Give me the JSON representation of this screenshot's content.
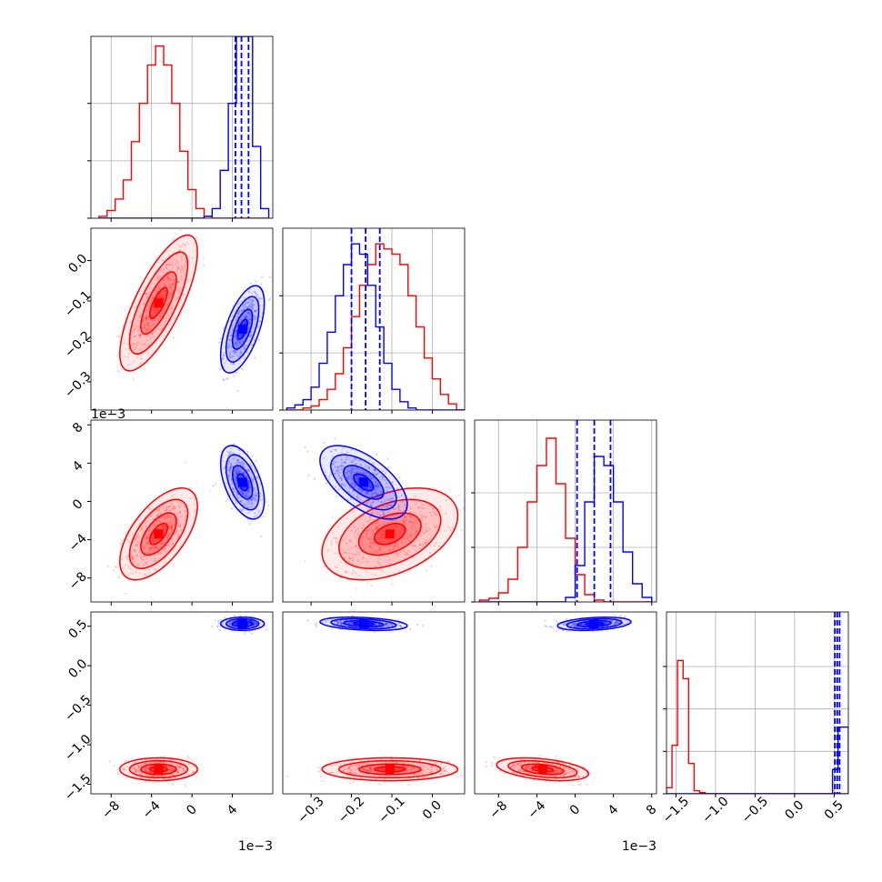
{
  "chart_data": {
    "type": "corner",
    "colors": {
      "series_a": "#ff0000",
      "series_b": "#0000ff"
    },
    "grid": true,
    "series": [
      {
        "color": "#ff0000",
        "hist_style": "step",
        "quantile_lines": false
      },
      {
        "color": "#0000ff",
        "hist_style": "step",
        "quantile_lines": true,
        "quantile_line_style": "dashed"
      }
    ],
    "parameters": [
      {
        "range": [
          -0.01,
          0.008
        ],
        "ticks": [
          -0.008,
          -0.004,
          0.0,
          0.004
        ],
        "tick_labels": [
          "−8",
          "−4",
          "0",
          "4"
        ],
        "offset_label": "1e−3"
      },
      {
        "range": [
          -0.37,
          0.08
        ],
        "ticks": [
          -0.3,
          -0.2,
          -0.1,
          0.0
        ],
        "tick_labels": [
          "−0.3",
          "−0.2",
          "−0.1",
          "0.0"
        ],
        "offset_label": ""
      },
      {
        "range": [
          -0.0105,
          0.0085
        ],
        "ticks": [
          -0.008,
          -0.004,
          0.0,
          0.004,
          0.008
        ],
        "tick_labels": [
          "−8",
          "−4",
          "0",
          "4",
          "8"
        ],
        "offset_label": "1e−3"
      },
      {
        "range": [
          -1.62,
          0.68
        ],
        "ticks": [
          -1.5,
          -1.0,
          -0.5,
          0.0,
          0.5
        ],
        "tick_labels": [
          "−1.5",
          "−1.0",
          "−0.5",
          "0.0",
          "0.5"
        ],
        "offset_label": ""
      }
    ],
    "marginals": [
      {
        "edges": [
          -0.0092,
          -0.0084,
          -0.0076,
          -0.0068,
          -0.006,
          -0.0052,
          -0.0044,
          -0.0036,
          -0.0028,
          -0.002,
          -0.0012,
          -0.0004,
          0.0004,
          0.0012,
          0.002,
          0.0028,
          0.0036,
          0.0044,
          0.0052,
          0.006,
          0.0068,
          0.0076
        ],
        "ymax": 190,
        "ticks": [
          0,
          60,
          120
        ],
        "red": [
          2,
          8,
          20,
          40,
          80,
          120,
          160,
          180,
          160,
          120,
          70,
          30,
          10,
          2,
          0,
          0,
          0,
          0,
          0,
          0,
          0
        ],
        "blue": [
          0,
          0,
          0,
          0,
          0,
          0,
          0,
          0,
          0,
          0,
          0,
          0,
          0,
          2,
          10,
          50,
          120,
          190,
          190,
          75,
          10
        ],
        "blue_quantiles": [
          0.0043,
          0.0049,
          0.0056
        ]
      },
      {
        "edges": [
          -0.36,
          -0.34,
          -0.32,
          -0.3,
          -0.28,
          -0.26,
          -0.24,
          -0.22,
          -0.2,
          -0.18,
          -0.16,
          -0.14,
          -0.12,
          -0.1,
          -0.08,
          -0.06,
          -0.04,
          -0.02,
          0.0,
          0.02,
          0.04,
          0.06,
          0.08
        ],
        "ymax": 175,
        "ticks": [
          0,
          55,
          110
        ],
        "red": [
          0,
          0,
          2,
          4,
          10,
          20,
          35,
          60,
          90,
          120,
          140,
          160,
          155,
          150,
          140,
          110,
          80,
          50,
          30,
          15,
          6,
          0
        ],
        "blue": [
          2,
          5,
          10,
          22,
          45,
          75,
          110,
          140,
          160,
          150,
          120,
          80,
          45,
          20,
          8,
          2,
          0,
          0,
          0,
          0,
          0,
          0
        ],
        "blue_quantiles": [
          -0.2,
          -0.165,
          -0.13
        ]
      },
      {
        "edges": [
          -0.01,
          -0.009,
          -0.008,
          -0.007,
          -0.006,
          -0.005,
          -0.004,
          -0.003,
          -0.002,
          -0.001,
          0.0,
          0.001,
          0.002,
          0.003,
          0.004,
          0.005,
          0.006,
          0.007,
          0.008
        ],
        "ymax": 200,
        "ticks": [
          0,
          60,
          120
        ],
        "red": [
          2,
          4,
          10,
          25,
          60,
          110,
          150,
          180,
          130,
          70,
          30,
          8,
          2,
          0,
          0,
          0,
          0,
          0
        ],
        "blue": [
          0,
          0,
          0,
          0,
          0,
          0,
          0,
          0,
          0,
          5,
          40,
          110,
          160,
          150,
          110,
          55,
          20,
          5
        ],
        "blue_quantiles": [
          0.0002,
          0.002,
          0.0037
        ]
      },
      {
        "edges": [
          -1.62,
          -1.55,
          -1.48,
          -1.41,
          -1.34,
          -1.27,
          -1.2,
          -1.13,
          -1.06,
          -0.99,
          -0.92,
          -0.85,
          -0.78,
          -0.71,
          -0.64,
          -0.57,
          -0.5,
          -0.43,
          -0.36,
          -0.29,
          -0.22,
          -0.15,
          -0.08,
          -0.01,
          0.06,
          0.13,
          0.2,
          0.27,
          0.34,
          0.41,
          0.48,
          0.55,
          0.62,
          0.68
        ],
        "ymax": 300,
        "ticks": [
          0,
          70,
          140,
          210
        ],
        "red": [
          10,
          80,
          220,
          190,
          50,
          5,
          2,
          0,
          0,
          0,
          0,
          0,
          0,
          0,
          0,
          0,
          0,
          0,
          0,
          0,
          0,
          0,
          0,
          0,
          0,
          0,
          0,
          0,
          0,
          0,
          0,
          0,
          0
        ],
        "blue": [
          0,
          0,
          0,
          0,
          0,
          0,
          0,
          0,
          0,
          0,
          0,
          0,
          0,
          0,
          0,
          0,
          0,
          0,
          0,
          0,
          0,
          0,
          0,
          0,
          0,
          0,
          0,
          0,
          0,
          0,
          40,
          110,
          110
        ],
        "blue_quantiles": [
          0.51,
          0.54,
          0.57
        ]
      }
    ],
    "clusters": {
      "red": [
        {
          "mean": -0.0033,
          "sd": 0.0016
        },
        {
          "mean": -0.105,
          "sd": 0.07
        },
        {
          "mean": -0.0034,
          "sd": 0.002
        },
        {
          "mean": -1.31,
          "sd": 0.06
        }
      ],
      "blue": [
        {
          "mean": 0.005,
          "sd": 0.0009
        },
        {
          "mean": -0.17,
          "sd": 0.045
        },
        {
          "mean": 0.002,
          "sd": 0.0016
        },
        {
          "mean": 0.53,
          "sd": 0.035
        }
      ],
      "correlations": {
        "red": {
          "0-1": 0.75,
          "0-2": 0.6,
          "0-3": 0.0,
          "1-2": 0.4,
          "1-3": 0.0,
          "2-3": -0.4
        },
        "blue": {
          "0-1": 0.6,
          "0-2": -0.5,
          "0-3": 0.0,
          "1-2": -0.6,
          "1-3": -0.3,
          "2-3": 0.3
        }
      }
    }
  }
}
